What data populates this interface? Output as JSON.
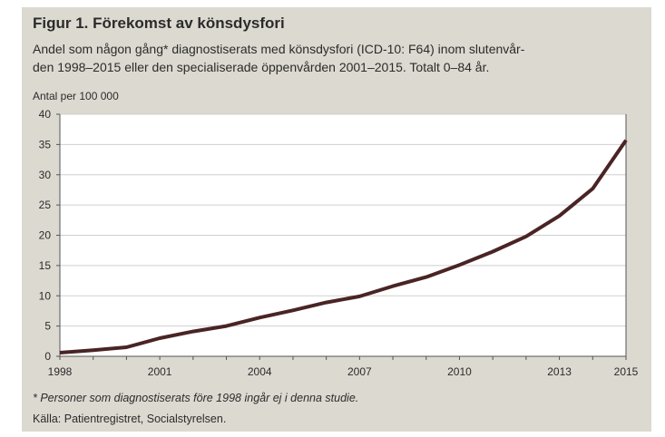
{
  "figure": {
    "title": "Figur 1. Förekomst av könsdysfori",
    "subtitle_lines": [
      "Andel som någon gång* diagnostiserats med könsdysfori (ICD-10: F64) inom slutenvår-",
      "den 1998–2015 eller den specialiserade öppenvården 2001–2015. Totalt 0–84 år."
    ],
    "footnote": "* Personer som diagnostiserats före 1998 ingår ej i denna studie.",
    "source": "Källa: Patientregistret, Socialstyrelsen."
  },
  "chart_data": {
    "type": "line",
    "ylabel": "Antal per 100 000",
    "xlabel": "",
    "x": [
      1998,
      1999,
      2000,
      2001,
      2002,
      2003,
      2004,
      2005,
      2006,
      2007,
      2008,
      2009,
      2010,
      2011,
      2012,
      2013,
      2014,
      2015
    ],
    "series": [
      {
        "values": [
          0.6,
          1.0,
          1.5,
          3.0,
          4.1,
          5.0,
          6.4,
          7.6,
          8.9,
          9.9,
          11.6,
          13.1,
          15.1,
          17.3,
          19.8,
          23.2,
          27.7,
          35.7
        ]
      }
    ],
    "xlim": [
      1998,
      2015
    ],
    "ylim": [
      0,
      40
    ],
    "xticks": [
      1998,
      2001,
      2004,
      2007,
      2010,
      2013,
      2015
    ],
    "yticks": [
      0,
      5,
      10,
      15,
      20,
      25,
      30,
      35,
      40
    ],
    "grid": true,
    "colors": {
      "line": "#4a2424",
      "grid": "#cfcfcf",
      "plot_bg": "#ffffff",
      "frame_bg": "#dcd9d0"
    }
  }
}
